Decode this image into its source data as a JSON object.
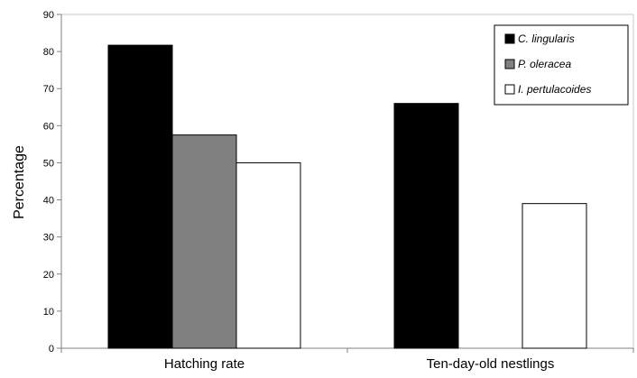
{
  "chart_data": {
    "type": "bar",
    "title": "",
    "xlabel": "",
    "ylabel": "Percentage",
    "ylim": [
      0,
      90
    ],
    "yticks": [
      "0",
      "10",
      "20",
      "30",
      "40",
      "50",
      "60",
      "70",
      "80",
      "90"
    ],
    "categories": [
      "Hatching rate",
      "Ten-day-old nestlings"
    ],
    "series": [
      {
        "name": "C. lingularis",
        "color": "#000000",
        "values": [
          81.7,
          66
        ]
      },
      {
        "name": "P. oleracea",
        "color": "#808080",
        "values": [
          57.5,
          null
        ]
      },
      {
        "name": "I. pertulacoides",
        "color": "#ffffff",
        "values": [
          50,
          39
        ]
      }
    ],
    "legend": "top-right",
    "grid": false
  }
}
